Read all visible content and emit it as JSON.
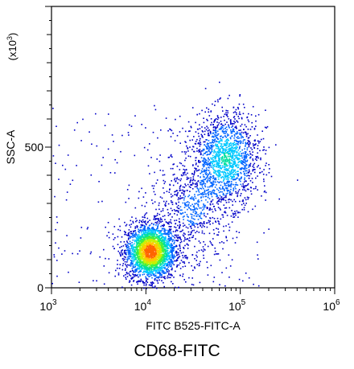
{
  "chart_data": {
    "type": "scatter",
    "subtype": "flow-cytometry-density-dot-plot",
    "title": "CD68-FITC",
    "xlabel": "FITC B525-FITC-A",
    "ylabel": "SSC-A",
    "y_multiplier_label": "(x10^3)",
    "x_scale": "log",
    "xlim": [
      1000,
      1000000
    ],
    "x_ticks": [
      {
        "value": 1000,
        "base": "10",
        "exp": "3"
      },
      {
        "value": 10000,
        "base": "10",
        "exp": "4"
      },
      {
        "value": 100000,
        "base": "10",
        "exp": "5"
      },
      {
        "value": 1000000,
        "base": "10",
        "exp": "6"
      }
    ],
    "y_scale": "linear",
    "ylim": [
      0,
      1000
    ],
    "y_ticks": [
      {
        "value": 0,
        "label": "0"
      },
      {
        "value": 500,
        "label": "500"
      }
    ],
    "grid": false,
    "legend": "none",
    "density_colormap": [
      "#0000c8",
      "#0064ff",
      "#00c8ff",
      "#00e0a0",
      "#40f040",
      "#c8f000",
      "#ffc800",
      "#ff6400"
    ],
    "populations": [
      {
        "center_x": 11000,
        "center_y": 130,
        "spread_log_x": 0.12,
        "spread_y": 45,
        "peak_density": 1.0
      },
      {
        "center_x": 70000,
        "center_y": 460,
        "spread_log_x": 0.16,
        "spread_y": 75,
        "peak_density": 0.35
      },
      {
        "center_x": 30000,
        "center_y": 280,
        "spread_log_x": 0.2,
        "spread_y": 90,
        "peak_density": 0.12
      }
    ]
  }
}
